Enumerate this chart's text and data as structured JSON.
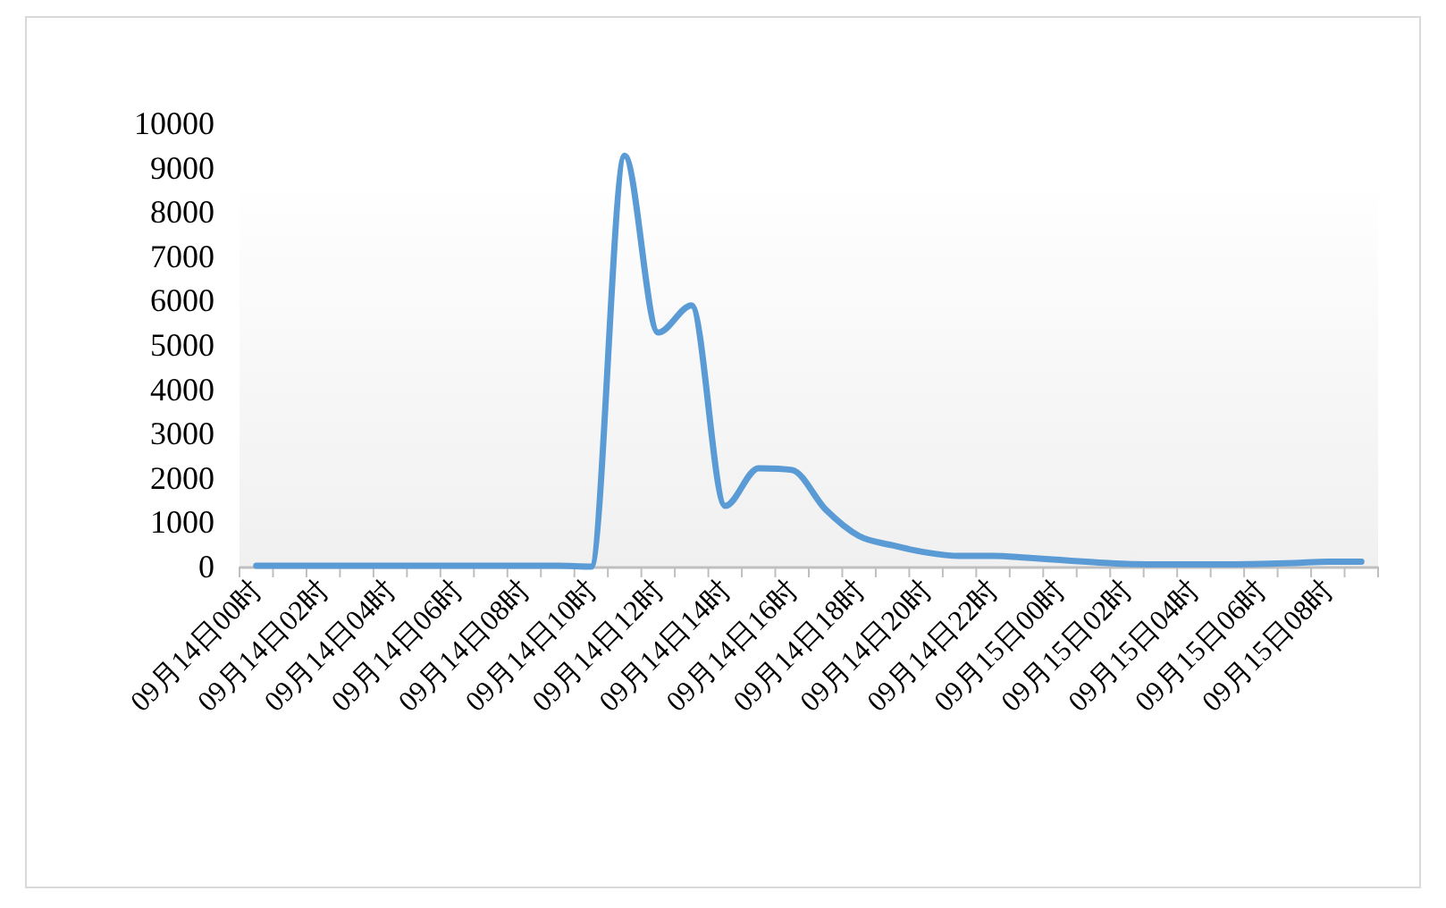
{
  "chart_data": {
    "type": "line",
    "categories": [
      "09月14日00时",
      null,
      "09月14日02时",
      null,
      "09月14日04时",
      null,
      "09月14日06时",
      null,
      "09月14日08时",
      null,
      "09月14日10时",
      null,
      "09月14日12时",
      null,
      "09月14日14时",
      null,
      "09月14日16时",
      null,
      "09月14日18时",
      null,
      "09月14日20时",
      null,
      "09月14日22时",
      null,
      "09月15日00时",
      null,
      "09月15日02时",
      null,
      "09月15日04时",
      null,
      "09月15日06时",
      null,
      "09月15日08时",
      null
    ],
    "series": [
      {
        "color": "#5b9bd5",
        "values": [
          20,
          20,
          20,
          20,
          20,
          20,
          20,
          20,
          20,
          20,
          0,
          9270,
          5280,
          5890,
          1370,
          2220,
          2180,
          1290,
          690,
          480,
          320,
          240,
          240,
          200,
          150,
          100,
          60,
          50,
          50,
          50,
          60,
          80,
          110,
          110
        ]
      }
    ],
    "ylim": [
      0,
      10000
    ],
    "yticks": [
      0,
      1000,
      2000,
      3000,
      4000,
      5000,
      6000,
      7000,
      8000,
      9000,
      10000
    ],
    "grid": false,
    "marker": "none",
    "line_style": "solid"
  }
}
